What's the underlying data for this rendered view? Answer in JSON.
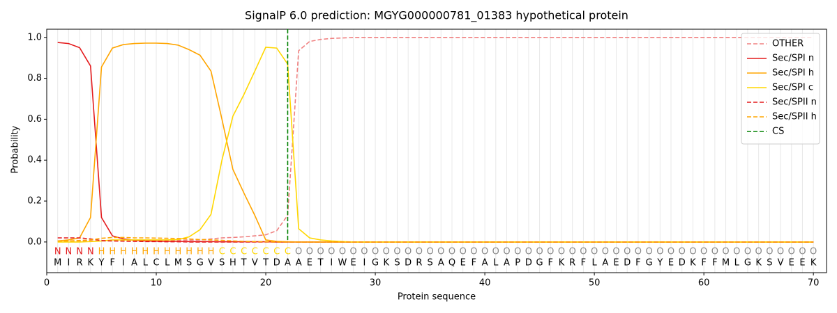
{
  "chart_data": {
    "type": "line",
    "title": "SignalP 6.0 prediction: MGYG000000781_01383 hypothetical protein",
    "x_label": "Protein sequence",
    "y_label": "Probability",
    "x": [
      1,
      2,
      3,
      4,
      5,
      6,
      7,
      8,
      9,
      10,
      11,
      12,
      13,
      14,
      15,
      16,
      17,
      18,
      19,
      20,
      21,
      22,
      23,
      24,
      25,
      26,
      27,
      28,
      29,
      30,
      31,
      32,
      33,
      34,
      35,
      36,
      37,
      38,
      39,
      40,
      41,
      42,
      43,
      44,
      45,
      46,
      47,
      48,
      49,
      50,
      51,
      52,
      53,
      54,
      55,
      56,
      57,
      58,
      59,
      60,
      61,
      62,
      63,
      64,
      65,
      66,
      67,
      68,
      69,
      70
    ],
    "residues": [
      "M",
      "I",
      "R",
      "K",
      "Y",
      "F",
      "I",
      "A",
      "L",
      "C",
      "L",
      "M",
      "S",
      "G",
      "V",
      "S",
      "H",
      "T",
      "V",
      "T",
      "D",
      "A",
      "A",
      "E",
      "T",
      "I",
      "W",
      "E",
      "I",
      "G",
      "K",
      "S",
      "D",
      "R",
      "S",
      "A",
      "Q",
      "E",
      "F",
      "A",
      "L",
      "A",
      "P",
      "D",
      "G",
      "F",
      "K",
      "R",
      "F",
      "L",
      "A",
      "E",
      "D",
      "F",
      "G",
      "Y",
      "E",
      "D",
      "K",
      "F",
      "F",
      "M",
      "L",
      "G",
      "K",
      "S",
      "V",
      "E",
      "E",
      "K"
    ],
    "region_labels": [
      "N",
      "N",
      "N",
      "N",
      "H",
      "H",
      "H",
      "H",
      "H",
      "H",
      "H",
      "H",
      "H",
      "H",
      "H",
      "C",
      "C",
      "C",
      "C",
      "C",
      "C",
      "C",
      "O",
      "O",
      "O",
      "O",
      "O",
      "O",
      "O",
      "O",
      "O",
      "O",
      "O",
      "O",
      "O",
      "O",
      "O",
      "O",
      "O",
      "O",
      "O",
      "O",
      "O",
      "O",
      "O",
      "O",
      "O",
      "O",
      "O",
      "O",
      "O",
      "O",
      "O",
      "O",
      "O",
      "O",
      "O",
      "O",
      "O",
      "O",
      "O",
      "O",
      "O",
      "O",
      "O",
      "O",
      "O",
      "O",
      "O",
      "O"
    ],
    "region_colors": {
      "N": "#e41a1c",
      "H": "#ffa500",
      "C": "#ffd700",
      "O": "#888888"
    },
    "xlim": [
      0,
      71.2
    ],
    "ylim": [
      -0.15,
      1.04
    ],
    "xticks": [
      0,
      10,
      20,
      30,
      40,
      50,
      60,
      70
    ],
    "yticks": [
      {
        "value": 0,
        "label": "0.0"
      },
      {
        "value": 0.2,
        "label": "0.2"
      },
      {
        "value": 0.4,
        "label": "0.4"
      },
      {
        "value": 0.6,
        "label": "0.6"
      },
      {
        "value": 0.8,
        "label": "0.8"
      },
      {
        "value": 1.0,
        "label": "1.0"
      }
    ],
    "legend": "upper right",
    "series": [
      {
        "name": "OTHER",
        "color": "#f08080",
        "dashed": true,
        "values": [
          0.005,
          0.005,
          0.005,
          0.005,
          0.005,
          0.005,
          0.005,
          0.005,
          0.005,
          0.006,
          0.007,
          0.008,
          0.009,
          0.01,
          0.015,
          0.02,
          0.022,
          0.025,
          0.03,
          0.035,
          0.055,
          0.13,
          0.935,
          0.98,
          0.99,
          0.995,
          0.997,
          1,
          1,
          1,
          1,
          1,
          1,
          1,
          1,
          1,
          1,
          1,
          1,
          1,
          1,
          1,
          1,
          1,
          1,
          1,
          1,
          1,
          1,
          1,
          1,
          1,
          1,
          1,
          1,
          1,
          1,
          1,
          1,
          1,
          1,
          1,
          1,
          1,
          1,
          1,
          1,
          1,
          1,
          1
        ]
      },
      {
        "name": "Sec/SPI n",
        "color": "#e41a1c",
        "dashed": false,
        "values": [
          0.975,
          0.97,
          0.95,
          0.86,
          0.12,
          0.03,
          0.015,
          0.008,
          0.005,
          0.004,
          0.003,
          0.003,
          0.002,
          0.002,
          0.002,
          0.001,
          0.001,
          0.001,
          0.001,
          0.001,
          0,
          0,
          0,
          0,
          0,
          0,
          0,
          0,
          0,
          0,
          0,
          0,
          0,
          0,
          0,
          0,
          0,
          0,
          0,
          0,
          0,
          0,
          0,
          0,
          0,
          0,
          0,
          0,
          0,
          0,
          0,
          0,
          0,
          0,
          0,
          0,
          0,
          0,
          0,
          0,
          0,
          0,
          0,
          0,
          0,
          0,
          0,
          0,
          0,
          0
        ]
      },
      {
        "name": "Sec/SPI h",
        "color": "#ffa500",
        "dashed": false,
        "values": [
          0.005,
          0.01,
          0.02,
          0.12,
          0.855,
          0.948,
          0.965,
          0.97,
          0.972,
          0.972,
          0.97,
          0.962,
          0.94,
          0.913,
          0.835,
          0.6,
          0.355,
          0.24,
          0.13,
          0.01,
          0.003,
          0.001,
          0,
          0,
          0,
          0,
          0,
          0,
          0,
          0,
          0,
          0,
          0,
          0,
          0,
          0,
          0,
          0,
          0,
          0,
          0,
          0,
          0,
          0,
          0,
          0,
          0,
          0,
          0,
          0,
          0,
          0,
          0,
          0,
          0,
          0,
          0,
          0,
          0,
          0,
          0,
          0,
          0,
          0,
          0,
          0,
          0,
          0,
          0,
          0
        ]
      },
      {
        "name": "Sec/SPI c",
        "color": "#ffd700",
        "dashed": false,
        "values": [
          0,
          0,
          0,
          0.002,
          0.005,
          0.01,
          0.01,
          0.01,
          0.01,
          0.01,
          0.01,
          0.012,
          0.025,
          0.06,
          0.135,
          0.4,
          0.615,
          0.72,
          0.835,
          0.952,
          0.948,
          0.87,
          0.065,
          0.02,
          0.01,
          0.005,
          0.002,
          0,
          0,
          0,
          0,
          0,
          0,
          0,
          0,
          0,
          0,
          0,
          0,
          0,
          0,
          0,
          0,
          0,
          0,
          0,
          0,
          0,
          0,
          0,
          0,
          0,
          0,
          0,
          0,
          0,
          0,
          0,
          0,
          0,
          0,
          0,
          0,
          0,
          0,
          0,
          0,
          0,
          0,
          0
        ]
      },
      {
        "name": "Sec/SPII n",
        "color": "#e41a1c",
        "dashed": true,
        "values": [
          0.02,
          0.02,
          0.02,
          0.015,
          0.007,
          0.005,
          0.004,
          0.003,
          0.002,
          0.002,
          0.001,
          0.001,
          0,
          0,
          0,
          0,
          0,
          0,
          0,
          0,
          0,
          0,
          0,
          0,
          0,
          0,
          0,
          0,
          0,
          0,
          0,
          0,
          0,
          0,
          0,
          0,
          0,
          0,
          0,
          0,
          0,
          0,
          0,
          0,
          0,
          0,
          0,
          0,
          0,
          0,
          0,
          0,
          0,
          0,
          0,
          0,
          0,
          0,
          0,
          0,
          0,
          0,
          0,
          0,
          0,
          0,
          0,
          0,
          0,
          0
        ]
      },
      {
        "name": "Sec/SPII h",
        "color": "#ffa500",
        "dashed": true,
        "values": [
          0.005,
          0.005,
          0.007,
          0.01,
          0.018,
          0.022,
          0.022,
          0.02,
          0.02,
          0.019,
          0.018,
          0.017,
          0.015,
          0.012,
          0.01,
          0.008,
          0.005,
          0.003,
          0.002,
          0.001,
          0,
          0,
          0,
          0,
          0,
          0,
          0,
          0,
          0,
          0,
          0,
          0,
          0,
          0,
          0,
          0,
          0,
          0,
          0,
          0,
          0,
          0,
          0,
          0,
          0,
          0,
          0,
          0,
          0,
          0,
          0,
          0,
          0,
          0,
          0,
          0,
          0,
          0,
          0,
          0,
          0,
          0,
          0,
          0,
          0,
          0,
          0,
          0,
          0,
          0
        ]
      }
    ],
    "markers": [
      {
        "name": "CS",
        "color": "#008000",
        "x": 22
      }
    ]
  }
}
